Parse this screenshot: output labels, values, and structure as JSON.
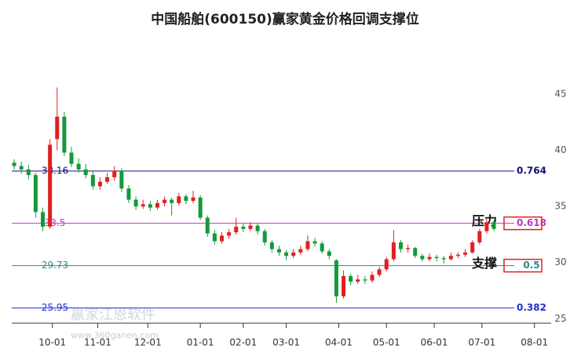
{
  "chart_data": {
    "type": "candlestick",
    "title": "中国船舶(600150)赢家黄金价格回调支撑位",
    "up_color": "#e02020",
    "down_color": "#139a3a",
    "x": [
      0,
      3,
      6,
      9,
      12,
      15,
      18,
      21,
      24,
      27,
      30,
      33,
      36,
      39,
      42,
      45,
      48,
      51,
      54,
      57,
      60,
      63,
      66,
      69,
      72,
      75,
      78,
      81,
      84,
      87,
      90,
      93,
      96,
      99,
      102,
      105,
      108,
      111,
      114,
      117,
      120,
      123,
      126,
      129,
      132,
      135,
      138,
      141,
      144,
      147,
      150,
      153,
      156,
      159,
      162,
      165,
      168,
      171,
      174,
      177,
      180,
      183,
      186,
      189,
      192,
      195,
      198,
      201
    ],
    "ohlc": [
      [
        38.9,
        39.2,
        38.3,
        38.6
      ],
      [
        38.6,
        39.0,
        37.9,
        38.3
      ],
      [
        38.3,
        38.7,
        37.4,
        37.8
      ],
      [
        37.8,
        38.0,
        34.0,
        34.5
      ],
      [
        34.5,
        34.9,
        32.8,
        33.2
      ],
      [
        33.2,
        41.0,
        33.0,
        40.5
      ],
      [
        41.0,
        45.6,
        40.0,
        43.0
      ],
      [
        43.0,
        43.4,
        39.5,
        39.8
      ],
      [
        39.8,
        40.3,
        38.5,
        38.8
      ],
      [
        38.8,
        39.3,
        38.0,
        38.3
      ],
      [
        38.3,
        38.8,
        37.5,
        37.8
      ],
      [
        37.8,
        38.1,
        36.5,
        36.8
      ],
      [
        36.8,
        37.6,
        36.5,
        37.2
      ],
      [
        37.2,
        38.0,
        37.0,
        37.6
      ],
      [
        37.6,
        38.6,
        37.3,
        38.2
      ],
      [
        38.2,
        38.4,
        36.3,
        36.6
      ],
      [
        36.6,
        36.9,
        35.3,
        35.6
      ],
      [
        35.6,
        35.9,
        34.7,
        35.0
      ],
      [
        35.0,
        35.6,
        34.8,
        35.2
      ],
      [
        35.2,
        35.5,
        34.6,
        34.9
      ],
      [
        34.9,
        35.6,
        34.7,
        35.3
      ],
      [
        35.3,
        35.9,
        35.0,
        35.6
      ],
      [
        35.6,
        35.8,
        34.2,
        35.3
      ],
      [
        35.3,
        36.2,
        35.1,
        35.9
      ],
      [
        35.9,
        36.1,
        35.2,
        35.5
      ],
      [
        35.5,
        36.4,
        35.3,
        35.8
      ],
      [
        35.8,
        36.0,
        33.8,
        34.0
      ],
      [
        34.0,
        34.2,
        32.3,
        32.6
      ],
      [
        32.6,
        32.9,
        31.6,
        31.9
      ],
      [
        31.9,
        32.7,
        31.7,
        32.4
      ],
      [
        32.4,
        33.0,
        32.1,
        32.7
      ],
      [
        32.7,
        34.0,
        32.5,
        33.2
      ],
      [
        33.2,
        33.5,
        32.7,
        33.0
      ],
      [
        33.0,
        33.6,
        32.8,
        33.3
      ],
      [
        33.3,
        33.5,
        32.5,
        32.8
      ],
      [
        32.8,
        33.0,
        31.5,
        31.8
      ],
      [
        31.8,
        32.0,
        30.9,
        31.2
      ],
      [
        31.2,
        31.5,
        30.6,
        30.9
      ],
      [
        30.9,
        31.1,
        30.2,
        30.6
      ],
      [
        30.6,
        31.2,
        30.4,
        30.9
      ],
      [
        30.9,
        31.5,
        30.7,
        31.2
      ],
      [
        31.2,
        32.4,
        31.0,
        31.9
      ],
      [
        31.9,
        32.2,
        31.4,
        31.7
      ],
      [
        31.7,
        31.9,
        30.8,
        31.0
      ],
      [
        31.0,
        31.2,
        30.3,
        30.6
      ],
      [
        30.2,
        30.3,
        26.4,
        27.0
      ],
      [
        27.0,
        29.3,
        26.8,
        28.8
      ],
      [
        28.8,
        29.0,
        28.0,
        28.3
      ],
      [
        28.3,
        28.9,
        28.1,
        28.5
      ],
      [
        28.5,
        28.8,
        28.1,
        28.4
      ],
      [
        28.4,
        29.2,
        28.2,
        28.9
      ],
      [
        28.9,
        29.6,
        28.7,
        29.4
      ],
      [
        29.4,
        30.5,
        29.2,
        30.3
      ],
      [
        30.3,
        32.9,
        30.1,
        31.8
      ],
      [
        31.8,
        32.0,
        30.9,
        31.2
      ],
      [
        31.2,
        31.6,
        30.9,
        31.3
      ],
      [
        31.3,
        31.4,
        30.4,
        30.6
      ],
      [
        30.6,
        30.8,
        30.1,
        30.3
      ],
      [
        30.3,
        30.8,
        30.1,
        30.5
      ],
      [
        30.5,
        30.7,
        30.1,
        30.4
      ],
      [
        30.4,
        30.6,
        29.9,
        30.3
      ],
      [
        30.3,
        30.9,
        30.2,
        30.6
      ],
      [
        30.6,
        30.9,
        30.4,
        30.7
      ],
      [
        30.7,
        31.2,
        30.5,
        30.9
      ],
      [
        30.9,
        32.0,
        30.8,
        31.8
      ],
      [
        31.8,
        33.0,
        31.6,
        32.8
      ],
      [
        32.8,
        33.9,
        32.6,
        33.6
      ],
      [
        33.6,
        33.8,
        32.8,
        33.0
      ]
    ],
    "xlim": [
      -1,
      225
    ],
    "xticks": [
      {
        "value": 16,
        "label": "10-01"
      },
      {
        "value": 35,
        "label": "11-01"
      },
      {
        "value": 56,
        "label": "12-01"
      },
      {
        "value": 78,
        "label": "01-01"
      },
      {
        "value": 96,
        "label": "02-01"
      },
      {
        "value": 114,
        "label": "03-01"
      },
      {
        "value": 136,
        "label": "04-01"
      },
      {
        "value": 156,
        "label": "05-01"
      },
      {
        "value": 176,
        "label": "06-01"
      },
      {
        "value": 196,
        "label": "07-01"
      },
      {
        "value": 218,
        "label": "08-01"
      }
    ],
    "ylim": [
      24.6,
      49.9
    ],
    "yticks": [
      25,
      30,
      35,
      40,
      45
    ],
    "levels": [
      {
        "ratio": 0.764,
        "price": 38.16,
        "color": "#10107a"
      },
      {
        "ratio": 0.618,
        "price": 33.5,
        "color": "#c036c0",
        "annotation": "压力"
      },
      {
        "ratio": 0.5,
        "price": 29.73,
        "color": "#2a8a8a",
        "annotation": "支撑"
      },
      {
        "ratio": 0.382,
        "price": 25.95,
        "color": "#2030d0"
      }
    ],
    "watermark": [
      "赢家江恩软件",
      "www.360ganen.com"
    ]
  }
}
